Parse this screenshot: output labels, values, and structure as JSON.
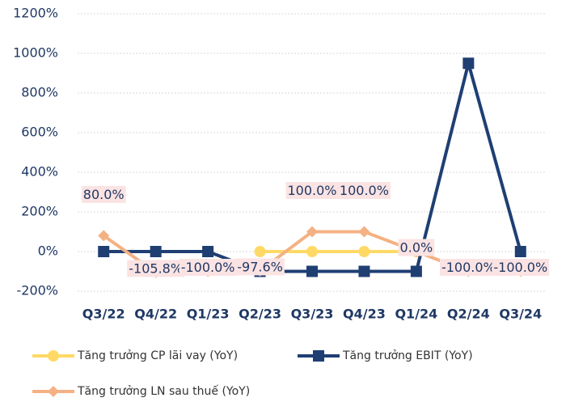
{
  "chart_data": {
    "type": "line",
    "categories": [
      "Q3/22",
      "Q4/22",
      "Q1/23",
      "Q2/23",
      "Q3/23",
      "Q4/23",
      "Q1/24",
      "Q2/24",
      "Q3/24"
    ],
    "series": [
      {
        "name": "Tăng trưởng CP lãi vay (YoY)",
        "color": "#ffd966",
        "marker": "circle",
        "values": [
          null,
          null,
          null,
          0,
          0,
          0,
          0,
          null,
          null
        ]
      },
      {
        "name": "Tăng trưởng EBIT (YoY)",
        "color": "#1f3f73",
        "marker": "square",
        "values": [
          0,
          0,
          0,
          -100,
          -100,
          -100,
          -100,
          950,
          0
        ]
      },
      {
        "name": "Tăng trưởng LN sau thuế (YoY)",
        "color": "#f4b183",
        "marker": "diamond",
        "values": [
          80,
          -105.8,
          -100,
          -97.6,
          100,
          100,
          0,
          -100,
          -100
        ],
        "value_labels": [
          "80.0%",
          "-105.8%",
          "-100.0%",
          "-97.6%",
          "100.0%",
          "100.0%",
          "0.0%",
          "-100.0%",
          "-100.0%"
        ]
      }
    ],
    "ylim": [
      -200,
      1200
    ],
    "yticks": [
      {
        "value": -200,
        "label": "-200%"
      },
      {
        "value": 0,
        "label": "0%"
      },
      {
        "value": 200,
        "label": "200%"
      },
      {
        "value": 400,
        "label": "400%"
      },
      {
        "value": 600,
        "label": "600%"
      },
      {
        "value": 800,
        "label": "800%"
      },
      {
        "value": 1000,
        "label": "1000%"
      },
      {
        "value": 1200,
        "label": "1200%"
      }
    ],
    "grid": true
  }
}
